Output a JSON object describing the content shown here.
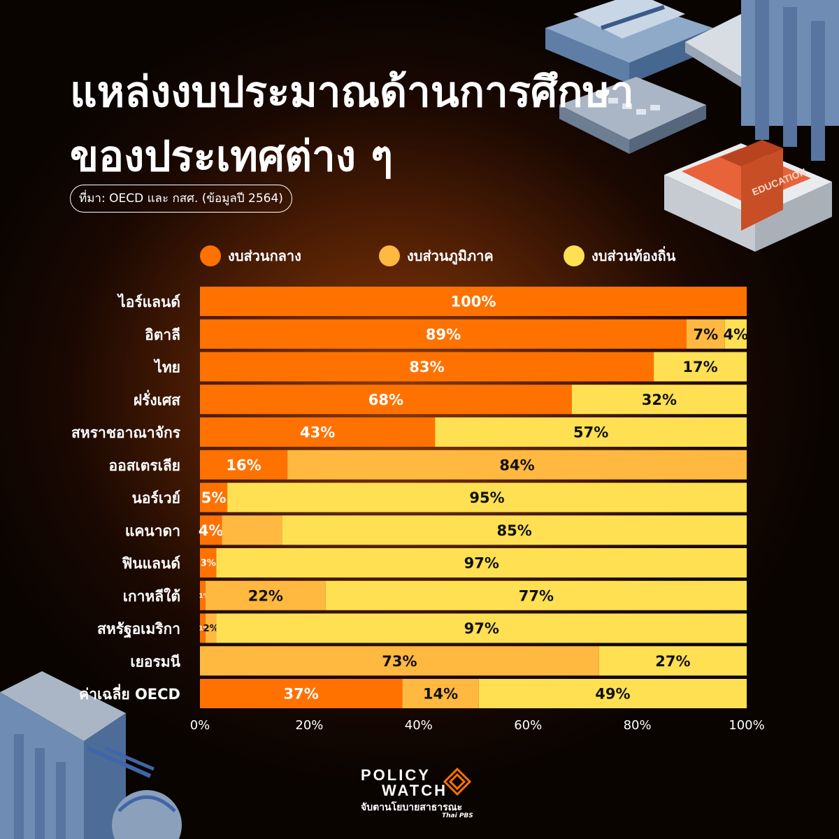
{
  "header": {
    "title_line1": "แหล่งงบประมาณด้านการศึกษา",
    "title_line2": "ของประเทศต่าง ๆ",
    "source": "ที่มา: OECD และ กสศ. (ข้อมูลปี 2564)"
  },
  "legend": [
    {
      "label": "งบส่วนกลาง",
      "color": "#ff7200"
    },
    {
      "label": "งบส่วนภูมิภาค",
      "color": "#ffb840"
    },
    {
      "label": "งบส่วนท้องถิ่น",
      "color": "#ffe052"
    }
  ],
  "chart_data": {
    "type": "bar",
    "orientation": "horizontal",
    "stacked": true,
    "categories": [
      "ไอร์แลนด์",
      "อิตาลี",
      "ไทย",
      "ฝรั่งเศส",
      "สหราชอาณาจักร",
      "ออสเตรเลีย",
      "นอร์เวย์",
      "แคนาดา",
      "ฟินแลนด์",
      "เกาหลีใต้",
      "สหรัฐอเมริกา",
      "เยอรมนี",
      "ค่าเฉลี่ย OECD"
    ],
    "series": [
      {
        "name": "งบส่วนกลาง",
        "color": "#ff7200",
        "values": [
          100,
          89,
          83,
          68,
          43,
          16,
          5,
          4,
          3,
          1,
          1,
          0,
          37
        ]
      },
      {
        "name": "งบส่วนภูมิภาค",
        "color": "#ffb840",
        "values": [
          0,
          7,
          0,
          0,
          0,
          84,
          0,
          11,
          0,
          22,
          2,
          73,
          14
        ]
      },
      {
        "name": "งบส่วนท้องถิ่น",
        "color": "#ffe052",
        "values": [
          0,
          4,
          17,
          32,
          57,
          0,
          95,
          85,
          97,
          77,
          97,
          27,
          49
        ]
      }
    ],
    "data_labels": [
      [
        "100%",
        "",
        ""
      ],
      [
        "89%",
        "7%",
        "4%"
      ],
      [
        "83%",
        "",
        "17%"
      ],
      [
        "68%",
        "",
        "32%"
      ],
      [
        "43%",
        "",
        "57%"
      ],
      [
        "16%",
        "84%",
        ""
      ],
      [
        "5%",
        "",
        "95%"
      ],
      [
        "4%",
        "",
        "85%"
      ],
      [
        "3%",
        "",
        "97%"
      ],
      [
        "1%",
        "22%",
        "77%"
      ],
      [
        "1%",
        "2%",
        "97%"
      ],
      [
        "",
        "73%",
        "27%"
      ],
      [
        "37%",
        "14%",
        "49%"
      ]
    ],
    "x_ticks": [
      "0%",
      "20%",
      "40%",
      "60%",
      "80%",
      "100%"
    ],
    "xlim": [
      0,
      100
    ],
    "legend_position": "top"
  },
  "logo": {
    "line1": "POLICY",
    "line2": "WATCH",
    "tagline": "จับตานโยบายสาธารณะ",
    "sub": "Thai PBS"
  }
}
